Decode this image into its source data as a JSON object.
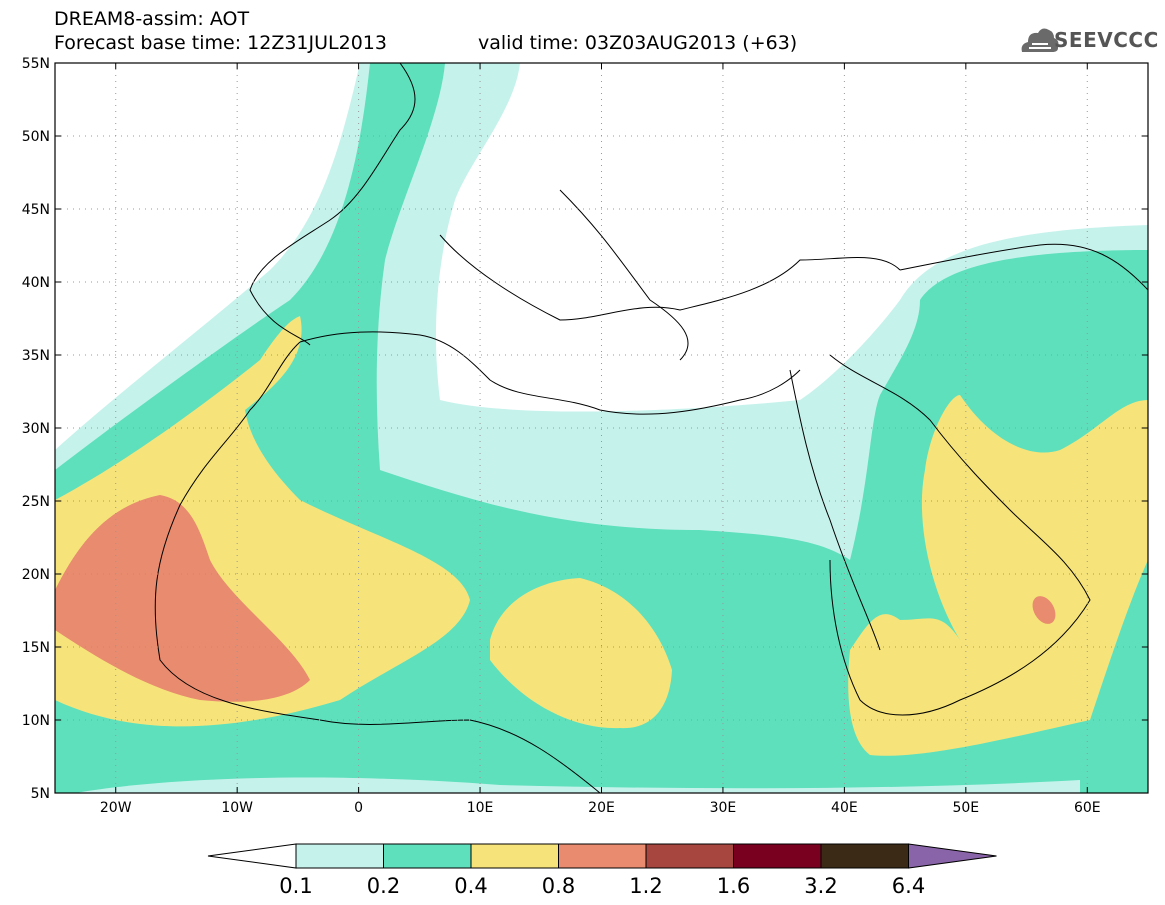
{
  "header": {
    "title_line1": "DREAM8-assim: AOT",
    "title_line2": "Forecast base time: 12Z31JUL2013",
    "valid_time": "valid time: 03Z03AUG2013 (+63)",
    "logo_text": "SEEVCCC"
  },
  "map": {
    "lon_range": [
      -25,
      65
    ],
    "lat_range": [
      5,
      55
    ],
    "lat_ticks": [
      {
        "value": 55,
        "label": "55N"
      },
      {
        "value": 50,
        "label": "50N"
      },
      {
        "value": 45,
        "label": "45N"
      },
      {
        "value": 40,
        "label": "40N"
      },
      {
        "value": 35,
        "label": "35N"
      },
      {
        "value": 30,
        "label": "30N"
      },
      {
        "value": 25,
        "label": "25N"
      },
      {
        "value": 20,
        "label": "20N"
      },
      {
        "value": 15,
        "label": "15N"
      },
      {
        "value": 10,
        "label": "10N"
      },
      {
        "value": 5,
        "label": "5N"
      }
    ],
    "lon_ticks": [
      {
        "value": -20,
        "label": "20W"
      },
      {
        "value": -10,
        "label": "10W"
      },
      {
        "value": 0,
        "label": "0"
      },
      {
        "value": 10,
        "label": "10E"
      },
      {
        "value": 20,
        "label": "20E"
      },
      {
        "value": 30,
        "label": "30E"
      },
      {
        "value": 40,
        "label": "40E"
      },
      {
        "value": 50,
        "label": "50E"
      },
      {
        "value": 60,
        "label": "60E"
      }
    ],
    "grid": "dotted"
  },
  "colorbar": {
    "colors": [
      "#c6f2ec",
      "#5ee0bc",
      "#f6e47a",
      "#e88b6e",
      "#a6463e",
      "#7a0020",
      "#3b2a16"
    ],
    "low_color": "#ffffff",
    "high_color": "#8a64a8",
    "labels": [
      "0.1",
      "0.2",
      "0.4",
      "0.8",
      "1.2",
      "1.6",
      "3.2",
      "6.4"
    ]
  },
  "fields": {
    "c1": "#c6f2ec",
    "c2": "#5ee0bc",
    "c3": "#f6e47a",
    "c4": "#e88b6e"
  }
}
